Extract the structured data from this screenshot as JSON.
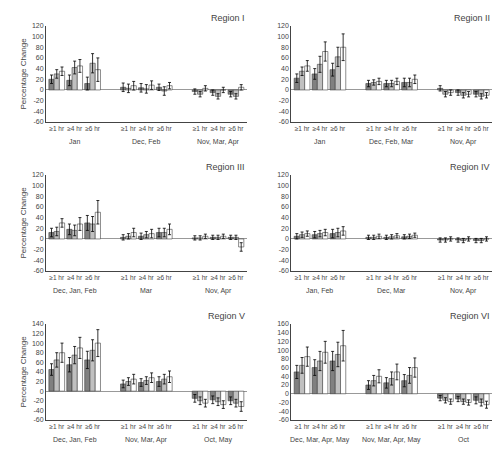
{
  "chart_data": [
    {
      "type": "bar",
      "title": "Region I",
      "ylabel": "Percentage Change",
      "groups": [
        "Jan",
        "Dec, Feb",
        "Nov, Mar, Apr"
      ],
      "categories": [
        "≥1 hr",
        "≥4 hr",
        "≥6 hr"
      ],
      "ylim": [
        -60,
        120
      ],
      "yticks": [
        -60,
        -40,
        -20,
        0,
        20,
        40,
        60,
        80,
        100,
        120
      ],
      "grid": false,
      "series": [
        {
          "color": "#808080",
          "values": [
            [
              20,
              18,
              12
            ],
            [
              5,
              4,
              5
            ],
            [
              -3,
              -5,
              -8
            ]
          ],
          "errors": [
            [
              8,
              10,
              12
            ],
            [
              8,
              8,
              6
            ],
            [
              5,
              5,
              5
            ]
          ]
        },
        {
          "color": "#c0c0c0",
          "values": [
            [
              30,
              42,
              50
            ],
            [
              3,
              2,
              -2
            ],
            [
              -8,
              -12,
              -12
            ]
          ],
          "errors": [
            [
              8,
              12,
              18
            ],
            [
              8,
              8,
              8
            ],
            [
              5,
              5,
              5
            ]
          ]
        },
        {
          "color": "#ffffff",
          "values": [
            [
              35,
              45,
              38
            ],
            [
              8,
              9,
              8
            ],
            [
              3,
              0,
              5
            ]
          ],
          "errors": [
            [
              8,
              12,
              22
            ],
            [
              8,
              8,
              6
            ],
            [
              5,
              5,
              5
            ]
          ]
        }
      ]
    },
    {
      "type": "bar",
      "title": "Region II",
      "groups": [
        "Jan",
        "Dec, Feb, Mar",
        "Nov, Apr"
      ],
      "categories": [
        "≥1 hr",
        "≥4 hr",
        "≥6 hr"
      ],
      "ylim": [
        -60,
        120
      ],
      "yticks": [
        -60,
        -40,
        -20,
        0,
        20,
        40,
        60,
        80,
        100,
        120
      ],
      "grid": false,
      "series": [
        {
          "color": "#808080",
          "values": [
            [
              22,
              30,
              38
            ],
            [
              12,
              12,
              14
            ],
            [
              3,
              -5,
              -8
            ]
          ],
          "errors": [
            [
              8,
              10,
              12
            ],
            [
              6,
              6,
              8
            ],
            [
              5,
              5,
              5
            ]
          ]
        },
        {
          "color": "#c0c0c0",
          "values": [
            [
              35,
              48,
              62
            ],
            [
              14,
              12,
              14
            ],
            [
              -8,
              -10,
              -12
            ]
          ],
          "errors": [
            [
              8,
              15,
              18
            ],
            [
              5,
              6,
              8
            ],
            [
              5,
              5,
              5
            ]
          ]
        },
        {
          "color": "#ffffff",
          "values": [
            [
              45,
              72,
              80
            ],
            [
              16,
              16,
              20
            ],
            [
              -5,
              -8,
              -10
            ]
          ],
          "errors": [
            [
              10,
              18,
              25
            ],
            [
              6,
              6,
              8
            ],
            [
              5,
              5,
              5
            ]
          ]
        }
      ]
    },
    {
      "type": "bar",
      "title": "Region III",
      "ylabel": "Percentage Change",
      "groups": [
        "Dec, Jan, Feb",
        "Mar",
        "Nov, Apr"
      ],
      "categories": [
        "≥1 hr",
        "≥4 hr",
        "≥6 hr"
      ],
      "ylim": [
        -60,
        120
      ],
      "yticks": [
        -60,
        -40,
        -20,
        0,
        20,
        40,
        60,
        80,
        100,
        120
      ],
      "grid": false,
      "series": [
        {
          "color": "#808080",
          "values": [
            [
              12,
              18,
              30
            ],
            [
              3,
              5,
              12
            ],
            [
              2,
              3,
              3
            ]
          ],
          "errors": [
            [
              8,
              10,
              14
            ],
            [
              5,
              6,
              8
            ],
            [
              4,
              4,
              4
            ]
          ]
        },
        {
          "color": "#c0c0c0",
          "values": [
            [
              14,
              16,
              28
            ],
            [
              5,
              8,
              12
            ],
            [
              2,
              3,
              3
            ]
          ],
          "errors": [
            [
              8,
              10,
              14
            ],
            [
              5,
              6,
              8
            ],
            [
              4,
              4,
              4
            ]
          ]
        },
        {
          "color": "#ffffff",
          "values": [
            [
              30,
              28,
              50
            ],
            [
              12,
              10,
              18
            ],
            [
              5,
              5,
              -15
            ]
          ],
          "errors": [
            [
              8,
              12,
              22
            ],
            [
              8,
              8,
              10
            ],
            [
              4,
              4,
              8
            ]
          ]
        }
      ]
    },
    {
      "type": "bar",
      "title": "Region IV",
      "groups": [
        "Jan, Feb",
        "Dec, Mar",
        "Nov, Apr"
      ],
      "categories": [
        "≥1 hr",
        "≥4 hr",
        "≥6 hr"
      ],
      "ylim": [
        -60,
        120
      ],
      "yticks": [
        -60,
        -40,
        -20,
        0,
        20,
        40,
        60,
        80,
        100,
        120
      ],
      "grid": false,
      "series": [
        {
          "color": "#808080",
          "values": [
            [
              5,
              8,
              10
            ],
            [
              3,
              3,
              4
            ],
            [
              -2,
              -2,
              -3
            ]
          ],
          "errors": [
            [
              5,
              6,
              8
            ],
            [
              4,
              4,
              4
            ],
            [
              4,
              4,
              4
            ]
          ]
        },
        {
          "color": "#c0c0c0",
          "values": [
            [
              8,
              10,
              12
            ],
            [
              3,
              4,
              5
            ],
            [
              -2,
              -3,
              -3
            ]
          ],
          "errors": [
            [
              5,
              6,
              8
            ],
            [
              4,
              4,
              4
            ],
            [
              4,
              4,
              4
            ]
          ]
        },
        {
          "color": "#ffffff",
          "values": [
            [
              10,
              12,
              15
            ],
            [
              5,
              6,
              7
            ],
            [
              0,
              0,
              0
            ]
          ],
          "errors": [
            [
              5,
              6,
              8
            ],
            [
              4,
              4,
              4
            ],
            [
              4,
              4,
              4
            ]
          ]
        }
      ]
    },
    {
      "type": "bar",
      "title": "Region V",
      "ylabel": "Percentage Change",
      "groups": [
        "Dec, Jan, Feb",
        "Nov, Mar, Apr",
        "Oct, May"
      ],
      "categories": [
        "≥1 hr",
        "≥4 hr",
        "≥6 hr"
      ],
      "ylim": [
        -60,
        140
      ],
      "yticks": [
        -60,
        -40,
        -20,
        0,
        20,
        40,
        60,
        80,
        100,
        120,
        140
      ],
      "grid": false,
      "series": [
        {
          "color": "#808080",
          "values": [
            [
              45,
              55,
              65
            ],
            [
              15,
              18,
              20
            ],
            [
              -15,
              -18,
              -20
            ]
          ],
          "errors": [
            [
              12,
              15,
              18
            ],
            [
              8,
              8,
              10
            ],
            [
              8,
              8,
              8
            ]
          ]
        },
        {
          "color": "#c0c0c0",
          "values": [
            [
              65,
              75,
              85
            ],
            [
              20,
              22,
              25
            ],
            [
              -20,
              -22,
              -25
            ]
          ],
          "errors": [
            [
              15,
              18,
              22
            ],
            [
              8,
              8,
              10
            ],
            [
              8,
              8,
              8
            ]
          ]
        },
        {
          "color": "#ffffff",
          "values": [
            [
              80,
              90,
              100
            ],
            [
              25,
              28,
              30
            ],
            [
              -25,
              -28,
              -32
            ]
          ],
          "errors": [
            [
              20,
              22,
              28
            ],
            [
              10,
              10,
              12
            ],
            [
              8,
              8,
              10
            ]
          ]
        }
      ]
    },
    {
      "type": "bar",
      "title": "Region VI",
      "groups": [
        "Dec, Mar, Apr, May",
        "Nov, Mar, Apr, May",
        "Oct"
      ],
      "categories": [
        "≥1 hr",
        "≥4 hr",
        "≥6 hr"
      ],
      "ylim": [
        -60,
        160
      ],
      "yticks": [
        -60,
        -40,
        -20,
        0,
        20,
        40,
        60,
        80,
        100,
        120,
        140,
        160
      ],
      "grid": false,
      "series": [
        {
          "color": "#808080",
          "values": [
            [
              50,
              60,
              75
            ],
            [
              20,
              25,
              30
            ],
            [
              -10,
              -12,
              -15
            ]
          ],
          "errors": [
            [
              15,
              18,
              22
            ],
            [
              10,
              12,
              14
            ],
            [
              6,
              6,
              8
            ]
          ]
        },
        {
          "color": "#c0c0c0",
          "values": [
            [
              65,
              75,
              90
            ],
            [
              30,
              35,
              42
            ],
            [
              -15,
              -18,
              -20
            ]
          ],
          "errors": [
            [
              18,
              22,
              28
            ],
            [
              12,
              15,
              18
            ],
            [
              6,
              6,
              8
            ]
          ]
        },
        {
          "color": "#ffffff",
          "values": [
            [
              85,
              95,
              110
            ],
            [
              40,
              50,
              60
            ],
            [
              -18,
              -20,
              -25
            ]
          ],
          "errors": [
            [
              22,
              25,
              35
            ],
            [
              15,
              18,
              22
            ],
            [
              6,
              6,
              8
            ]
          ]
        }
      ]
    }
  ]
}
